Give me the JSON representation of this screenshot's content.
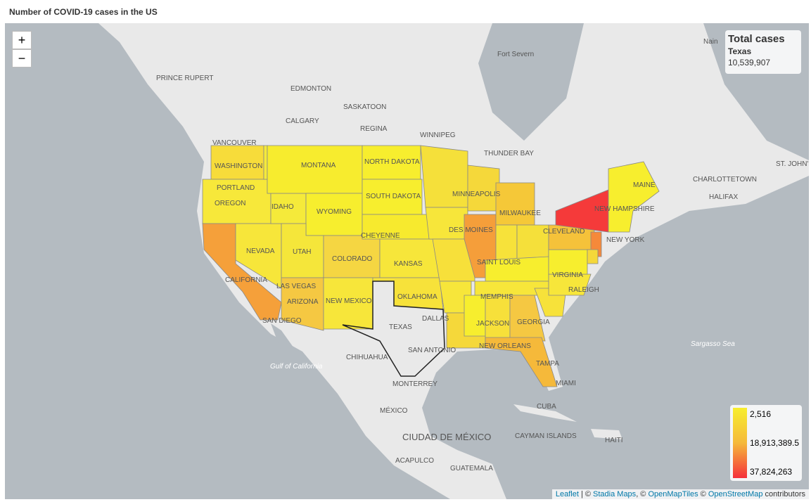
{
  "header": {
    "title": "Number of COVID-19 cases in the US"
  },
  "zoom": {
    "in": "+",
    "out": "−"
  },
  "info": {
    "title": "Total cases",
    "state": "Texas",
    "value": "10,539,907"
  },
  "legend": {
    "labels": [
      "2,516",
      "18,913,389.5",
      "37,824,263"
    ]
  },
  "place_labels": [
    "PRINCE RUPERT",
    "EDMONTON",
    "SASKATOON",
    "CALGARY",
    "REGINA",
    "WINNIPEG",
    "Fort Severn",
    "THUNDER BAY",
    "VANCOUVER",
    "Nain",
    "CHARLOTTETOWN",
    "HALIFAX",
    "ST. JOHN'S",
    "WASHINGTON",
    "PORTLAND",
    "OREGON",
    "MONTANA",
    "NORTH DAKOTA",
    "SOUTH DAKOTA",
    "MINNEAPOLIS",
    "IDAHO",
    "WYOMING",
    "NEVADA",
    "UTAH",
    "COLORADO",
    "CHEYENNE",
    "DES MOINES",
    "KANSAS",
    "CALIFORNIA",
    "LAS VEGAS",
    "ARIZONA",
    "NEW MEXICO",
    "OKLAHOMA",
    "TEXAS",
    "DALLAS",
    "SAN ANTONIO",
    "SAN DIEGO",
    "MEMPHIS",
    "JACKSON",
    "GEORGIA",
    "NEW ORLEANS",
    "TAMPA",
    "MIAMI",
    "SAINT LOUIS",
    "MILWAUKEE",
    "CLEVELAND",
    "VIRGINIA",
    "RALEIGH",
    "NEW YORK",
    "NEW HAMPSHIRE",
    "MAINE",
    "CHIHUAHUA",
    "MONTERREY",
    "MÉXICO",
    "CIUDAD DE MÉXICO",
    "ACAPULCO",
    "GUATEMALA",
    "CUBA",
    "CAYMAN ISLANDS",
    "HAITI",
    "Gulf of California",
    "Sargasso Sea"
  ],
  "attribution": [
    "Leaflet",
    " | © ",
    "Stadia Maps",
    ", © ",
    "OpenMapTiles",
    " © ",
    "OpenStreetMap",
    " contributors"
  ]
}
